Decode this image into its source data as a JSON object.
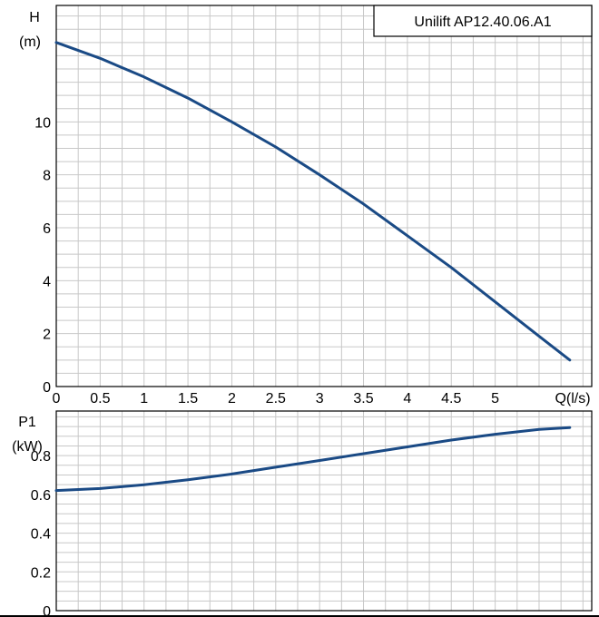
{
  "chart_data": [
    {
      "type": "line",
      "title": "Unilift AP12.40.06.A1",
      "ylabel_line1": "H",
      "ylabel_line2": "(m)",
      "xlabel": "Q(l/s)",
      "x_ticks": [
        "0",
        "0.5",
        "1",
        "1.5",
        "2",
        "2.5",
        "3",
        "3.5",
        "4",
        "4.5",
        "5"
      ],
      "y_ticks": [
        "0",
        "2",
        "4",
        "6",
        "8",
        "10"
      ],
      "xlim": [
        0,
        6.1
      ],
      "ylim": [
        0,
        14.4
      ],
      "grid": true,
      "series": [
        {
          "color": "#1a4a85",
          "x": [
            0,
            0.5,
            1,
            1.5,
            2,
            2.5,
            3,
            3.5,
            4,
            4.5,
            5,
            5.5,
            5.85
          ],
          "y": [
            13.0,
            12.4,
            11.7,
            10.9,
            10.0,
            9.05,
            8.0,
            6.9,
            5.7,
            4.5,
            3.2,
            1.9,
            1.0
          ]
        }
      ]
    },
    {
      "type": "line",
      "ylabel_line1": "P1",
      "ylabel_line2": "(kW)",
      "y_ticks": [
        "0",
        "0.2",
        "0.4",
        "0.6",
        "0.8"
      ],
      "xlim": [
        0,
        6.1
      ],
      "ylim": [
        0,
        1.03
      ],
      "grid": true,
      "series": [
        {
          "color": "#1a4a85",
          "x": [
            0,
            0.5,
            1,
            1.5,
            2,
            2.5,
            3,
            3.5,
            4,
            4.5,
            5,
            5.5,
            5.85
          ],
          "y": [
            0.62,
            0.63,
            0.65,
            0.675,
            0.705,
            0.74,
            0.775,
            0.81,
            0.845,
            0.88,
            0.91,
            0.935,
            0.945
          ]
        }
      ]
    }
  ]
}
